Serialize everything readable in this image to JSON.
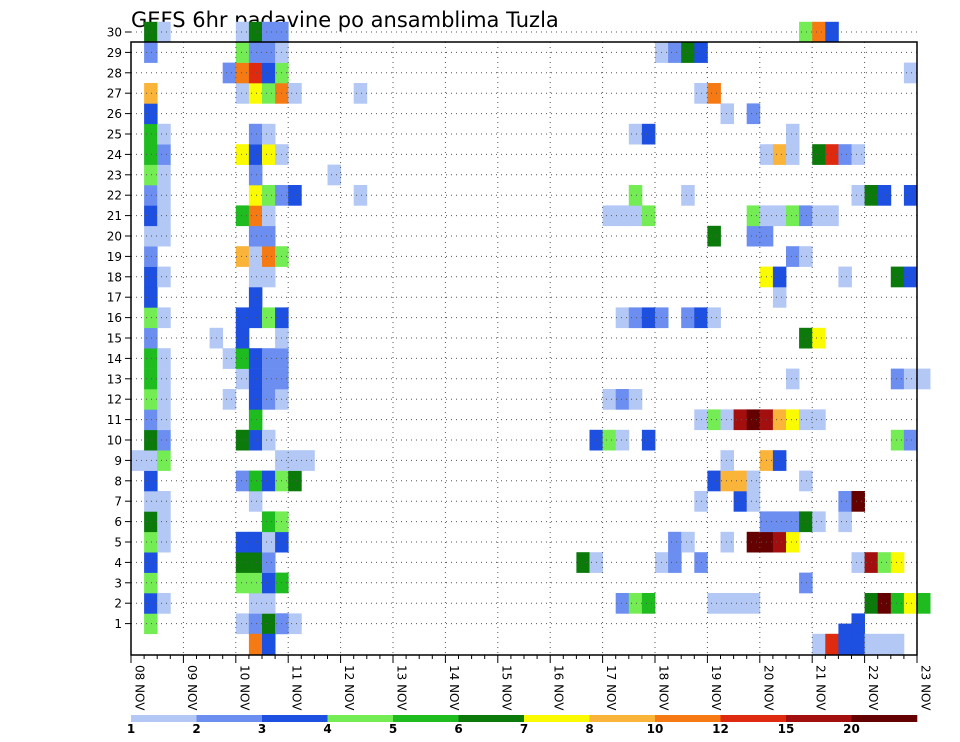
{
  "chart_data": {
    "type": "heatmap",
    "title": "GEFS 6hr padavine po ansamblima Tuzla",
    "y_members": [
      1,
      2,
      3,
      4,
      5,
      6,
      7,
      8,
      9,
      10,
      11,
      12,
      13,
      14,
      15,
      16,
      17,
      18,
      19,
      20,
      21,
      22,
      23,
      24,
      25,
      26,
      27,
      28,
      29,
      30
    ],
    "x_ticks": [
      "08 NOV",
      "09 NOV",
      "10 NOV",
      "11 NOV",
      "12 NOV",
      "13 NOV",
      "14 NOV",
      "15 NOV",
      "16 NOV",
      "17 NOV",
      "18 NOV",
      "19 NOV",
      "20 NOV",
      "21 NOV",
      "22 NOV",
      "23 NOV"
    ],
    "x_range_days": [
      8,
      23
    ],
    "grid": "dotted",
    "colorbar": {
      "labels": [
        "1",
        "2",
        "3",
        "4",
        "5",
        "6",
        "7",
        "8",
        "10",
        "12",
        "15",
        "20"
      ],
      "colors": [
        "#b4c8f5",
        "#6b8ef0",
        "#1d4fe0",
        "#74ec54",
        "#1fbc1f",
        "#0b7a0b",
        "#fafa00",
        "#fbb43a",
        "#f57a14",
        "#de2a0f",
        "#a30f0f",
        "#640000"
      ]
    },
    "cells": [
      [
        8.25,
        1,
        "#74ec54"
      ],
      [
        10.0,
        1,
        "#b4c8f5"
      ],
      [
        10.25,
        1,
        "#6b8ef0"
      ],
      [
        10.25,
        1,
        "#6b8ef0"
      ],
      [
        10.5,
        1,
        "#0b7a0b"
      ],
      [
        10.75,
        1,
        "#1d4fe0"
      ],
      [
        11.0,
        1,
        "#b4c8f5"
      ],
      [
        10.75,
        1,
        "#6b8ef0"
      ],
      [
        21.75,
        1,
        "#1d4fe0"
      ],
      [
        8.25,
        2,
        "#1d4fe0"
      ],
      [
        8.5,
        2,
        "#b4c8f5"
      ],
      [
        10.25,
        2,
        "#b4c8f5"
      ],
      [
        10.5,
        2,
        "#b4c8f5"
      ],
      [
        17.25,
        2,
        "#6b8ef0"
      ],
      [
        17.5,
        2,
        "#74ec54"
      ],
      [
        17.75,
        2,
        "#1fbc1f"
      ],
      [
        19.0,
        2,
        "#b4c8f5"
      ],
      [
        19.25,
        2,
        "#b4c8f5"
      ],
      [
        19.5,
        2,
        "#b4c8f5"
      ],
      [
        19.75,
        2,
        "#b4c8f5"
      ],
      [
        22.0,
        2,
        "#0b7a0b"
      ],
      [
        22.25,
        2,
        "#640000"
      ],
      [
        22.5,
        2,
        "#1fbc1f"
      ],
      [
        22.75,
        2,
        "#fafa00"
      ],
      [
        23.0,
        2,
        "#1fbc1f"
      ],
      [
        8.25,
        3,
        "#74ec54"
      ],
      [
        10.0,
        3,
        "#74ec54"
      ],
      [
        10.25,
        3,
        "#74ec54"
      ],
      [
        10.5,
        3,
        "#1d4fe0"
      ],
      [
        10.75,
        3,
        "#1fbc1f"
      ],
      [
        20.75,
        3,
        "#6b8ef0"
      ],
      [
        8.25,
        4,
        "#1d4fe0"
      ],
      [
        10.0,
        4,
        "#0b7a0b"
      ],
      [
        10.25,
        4,
        "#0b7a0b"
      ],
      [
        10.5,
        4,
        "#6b8ef0"
      ],
      [
        16.5,
        4,
        "#0b7a0b"
      ],
      [
        16.75,
        4,
        "#b4c8f5"
      ],
      [
        18.0,
        4,
        "#b4c8f5"
      ],
      [
        18.25,
        4,
        "#6b8ef0"
      ],
      [
        18.75,
        4,
        "#6b8ef0"
      ],
      [
        21.75,
        4,
        "#b4c8f5"
      ],
      [
        22.0,
        4,
        "#a30f0f"
      ],
      [
        22.25,
        4,
        "#74ec54"
      ],
      [
        22.5,
        4,
        "#fafa00"
      ],
      [
        8.25,
        5,
        "#74ec54"
      ],
      [
        8.5,
        5,
        "#b4c8f5"
      ],
      [
        10.0,
        5,
        "#1d4fe0"
      ],
      [
        10.25,
        5,
        "#1d4fe0"
      ],
      [
        10.5,
        5,
        "#b4c8f5"
      ],
      [
        10.75,
        5,
        "#1d4fe0"
      ],
      [
        18.25,
        5,
        "#6b8ef0"
      ],
      [
        18.5,
        5,
        "#b4c8f5"
      ],
      [
        19.25,
        5,
        "#b4c8f5"
      ],
      [
        19.75,
        5,
        "#640000"
      ],
      [
        20.0,
        5,
        "#640000"
      ],
      [
        20.25,
        5,
        "#a30f0f"
      ],
      [
        20.5,
        5,
        "#fafa00"
      ],
      [
        8.25,
        6,
        "#0b7a0b"
      ],
      [
        8.5,
        6,
        "#b4c8f5"
      ],
      [
        10.5,
        6,
        "#1fbc1f"
      ],
      [
        10.75,
        6,
        "#74ec54"
      ],
      [
        20.0,
        6,
        "#6b8ef0"
      ],
      [
        20.25,
        6,
        "#6b8ef0"
      ],
      [
        20.5,
        6,
        "#6b8ef0"
      ],
      [
        20.75,
        6,
        "#0b7a0b"
      ],
      [
        21.0,
        6,
        "#b4c8f5"
      ],
      [
        21.5,
        6,
        "#b4c8f5"
      ],
      [
        8.25,
        7,
        "#b4c8f5"
      ],
      [
        8.5,
        7,
        "#b4c8f5"
      ],
      [
        10.25,
        7,
        "#b4c8f5"
      ],
      [
        18.75,
        7,
        "#b4c8f5"
      ],
      [
        19.5,
        7,
        "#1d4fe0"
      ],
      [
        19.75,
        7,
        "#b4c8f5"
      ],
      [
        21.5,
        7,
        "#6b8ef0"
      ],
      [
        21.75,
        7,
        "#640000"
      ],
      [
        8.25,
        8,
        "#1d4fe0"
      ],
      [
        10.0,
        8,
        "#6b8ef0"
      ],
      [
        10.25,
        8,
        "#1fbc1f"
      ],
      [
        10.5,
        8,
        "#1d4fe0"
      ],
      [
        10.75,
        8,
        "#74ec54"
      ],
      [
        11.0,
        8,
        "#0b7a0b"
      ],
      [
        19.0,
        8,
        "#1d4fe0"
      ],
      [
        19.25,
        8,
        "#fbb43a"
      ],
      [
        19.5,
        8,
        "#fbb43a"
      ],
      [
        19.75,
        8,
        "#b4c8f5"
      ],
      [
        20.75,
        8,
        "#b4c8f5"
      ],
      [
        8.0,
        9,
        "#b4c8f5"
      ],
      [
        8.25,
        9,
        "#b4c8f5"
      ],
      [
        8.5,
        9,
        "#74ec54"
      ],
      [
        10.75,
        9,
        "#b4c8f5"
      ],
      [
        11.0,
        9,
        "#b4c8f5"
      ],
      [
        11.25,
        9,
        "#b4c8f5"
      ],
      [
        19.25,
        9,
        "#b4c8f5"
      ],
      [
        20.0,
        9,
        "#fbb43a"
      ],
      [
        20.25,
        9,
        "#1d4fe0"
      ],
      [
        8.25,
        10,
        "#0b7a0b"
      ],
      [
        8.5,
        10,
        "#6b8ef0"
      ],
      [
        10.0,
        10,
        "#0b7a0b"
      ],
      [
        10.25,
        10,
        "#1d4fe0"
      ],
      [
        10.5,
        10,
        "#b4c8f5"
      ],
      [
        16.75,
        10,
        "#1d4fe0"
      ],
      [
        17.0,
        10,
        "#74ec54"
      ],
      [
        17.25,
        10,
        "#b4c8f5"
      ],
      [
        17.75,
        10,
        "#1d4fe0"
      ],
      [
        22.5,
        10,
        "#74ec54"
      ],
      [
        22.75,
        10,
        "#6b8ef0"
      ],
      [
        8.25,
        11,
        "#6b8ef0"
      ],
      [
        8.5,
        11,
        "#b4c8f5"
      ],
      [
        10.25,
        11,
        "#1fbc1f"
      ],
      [
        18.75,
        11,
        "#b4c8f5"
      ],
      [
        19.0,
        11,
        "#74ec54"
      ],
      [
        19.25,
        11,
        "#b4c8f5"
      ],
      [
        19.5,
        11,
        "#a30f0f"
      ],
      [
        19.75,
        11,
        "#640000"
      ],
      [
        20.0,
        11,
        "#a30f0f"
      ],
      [
        20.25,
        11,
        "#fbb43a"
      ],
      [
        20.5,
        11,
        "#fafa00"
      ],
      [
        20.75,
        11,
        "#b4c8f5"
      ],
      [
        21.0,
        11,
        "#b4c8f5"
      ],
      [
        8.25,
        12,
        "#74ec54"
      ],
      [
        8.5,
        12,
        "#b4c8f5"
      ],
      [
        9.75,
        12,
        "#b4c8f5"
      ],
      [
        10.25,
        12,
        "#1d4fe0"
      ],
      [
        10.5,
        12,
        "#6b8ef0"
      ],
      [
        10.75,
        12,
        "#b4c8f5"
      ],
      [
        17.0,
        12,
        "#b4c8f5"
      ],
      [
        17.25,
        12,
        "#6b8ef0"
      ],
      [
        17.5,
        12,
        "#b4c8f5"
      ],
      [
        8.25,
        13,
        "#1fbc1f"
      ],
      [
        8.5,
        13,
        "#b4c8f5"
      ],
      [
        10.0,
        13,
        "#b4c8f5"
      ],
      [
        10.25,
        13,
        "#1d4fe0"
      ],
      [
        10.5,
        13,
        "#6b8ef0"
      ],
      [
        10.75,
        13,
        "#6b8ef0"
      ],
      [
        20.5,
        13,
        "#b4c8f5"
      ],
      [
        22.5,
        13,
        "#6b8ef0"
      ],
      [
        22.75,
        13,
        "#b4c8f5"
      ],
      [
        23.0,
        13,
        "#b4c8f5"
      ],
      [
        8.25,
        14,
        "#1fbc1f"
      ],
      [
        8.5,
        14,
        "#b4c8f5"
      ],
      [
        9.75,
        14,
        "#b4c8f5"
      ],
      [
        10.0,
        14,
        "#1fbc1f"
      ],
      [
        10.25,
        14,
        "#1d4fe0"
      ],
      [
        10.5,
        14,
        "#6b8ef0"
      ],
      [
        10.75,
        14,
        "#6b8ef0"
      ],
      [
        8.25,
        15,
        "#6b8ef0"
      ],
      [
        9.5,
        15,
        "#b4c8f5"
      ],
      [
        10.0,
        15,
        "#1d4fe0"
      ],
      [
        10.75,
        15,
        "#b4c8f5"
      ],
      [
        20.75,
        15,
        "#0b7a0b"
      ],
      [
        21.0,
        15,
        "#fafa00"
      ],
      [
        8.25,
        16,
        "#74ec54"
      ],
      [
        8.5,
        16,
        "#b4c8f5"
      ],
      [
        10.0,
        16,
        "#1d4fe0"
      ],
      [
        10.25,
        16,
        "#1d4fe0"
      ],
      [
        10.5,
        16,
        "#74ec54"
      ],
      [
        10.75,
        16,
        "#1d4fe0"
      ],
      [
        17.25,
        16,
        "#b4c8f5"
      ],
      [
        17.5,
        16,
        "#6b8ef0"
      ],
      [
        17.75,
        16,
        "#1d4fe0"
      ],
      [
        18.0,
        16,
        "#6b8ef0"
      ],
      [
        18.5,
        16,
        "#6b8ef0"
      ],
      [
        18.75,
        16,
        "#1d4fe0"
      ],
      [
        19.0,
        16,
        "#b4c8f5"
      ],
      [
        8.25,
        17,
        "#1d4fe0"
      ],
      [
        10.25,
        17,
        "#1d4fe0"
      ],
      [
        20.25,
        17,
        "#b4c8f5"
      ],
      [
        8.25,
        18,
        "#1d4fe0"
      ],
      [
        8.5,
        18,
        "#b4c8f5"
      ],
      [
        10.25,
        18,
        "#b4c8f5"
      ],
      [
        10.5,
        18,
        "#b4c8f5"
      ],
      [
        20.0,
        18,
        "#fafa00"
      ],
      [
        20.25,
        18,
        "#1d4fe0"
      ],
      [
        21.5,
        18,
        "#b4c8f5"
      ],
      [
        22.5,
        18,
        "#0b7a0b"
      ],
      [
        22.75,
        18,
        "#1d4fe0"
      ],
      [
        8.25,
        19,
        "#6b8ef0"
      ],
      [
        10.0,
        19,
        "#fbb43a"
      ],
      [
        10.25,
        19,
        "#b4c8f5"
      ],
      [
        10.5,
        19,
        "#f57a14"
      ],
      [
        10.75,
        19,
        "#74ec54"
      ],
      [
        20.5,
        19,
        "#6b8ef0"
      ],
      [
        20.75,
        19,
        "#b4c8f5"
      ],
      [
        8.25,
        20,
        "#b4c8f5"
      ],
      [
        8.5,
        20,
        "#b4c8f5"
      ],
      [
        10.25,
        20,
        "#6b8ef0"
      ],
      [
        10.5,
        20,
        "#6b8ef0"
      ],
      [
        19.0,
        20,
        "#0b7a0b"
      ],
      [
        19.75,
        20,
        "#6b8ef0"
      ],
      [
        20.0,
        20,
        "#6b8ef0"
      ],
      [
        8.25,
        21,
        "#1d4fe0"
      ],
      [
        8.5,
        21,
        "#b4c8f5"
      ],
      [
        10.0,
        21,
        "#1fbc1f"
      ],
      [
        10.25,
        21,
        "#f57a14"
      ],
      [
        10.5,
        21,
        "#b4c8f5"
      ],
      [
        17.0,
        21,
        "#b4c8f5"
      ],
      [
        17.25,
        21,
        "#b4c8f5"
      ],
      [
        17.5,
        21,
        "#b4c8f5"
      ],
      [
        17.75,
        21,
        "#74ec54"
      ],
      [
        19.75,
        21,
        "#74ec54"
      ],
      [
        20.0,
        21,
        "#b4c8f5"
      ],
      [
        20.25,
        21,
        "#b4c8f5"
      ],
      [
        20.5,
        21,
        "#74ec54"
      ],
      [
        20.75,
        21,
        "#6b8ef0"
      ],
      [
        21.0,
        21,
        "#b4c8f5"
      ],
      [
        21.25,
        21,
        "#b4c8f5"
      ],
      [
        8.25,
        22,
        "#6b8ef0"
      ],
      [
        8.5,
        22,
        "#b4c8f5"
      ],
      [
        10.25,
        22,
        "#fafa00"
      ],
      [
        10.5,
        22,
        "#74ec54"
      ],
      [
        10.75,
        22,
        "#6b8ef0"
      ],
      [
        11.0,
        22,
        "#1d4fe0"
      ],
      [
        12.25,
        22,
        "#b4c8f5"
      ],
      [
        17.5,
        22,
        "#74ec54"
      ],
      [
        18.5,
        22,
        "#b4c8f5"
      ],
      [
        21.75,
        22,
        "#b4c8f5"
      ],
      [
        22.0,
        22,
        "#0b7a0b"
      ],
      [
        22.25,
        22,
        "#1d4fe0"
      ],
      [
        22.75,
        22,
        "#1d4fe0"
      ],
      [
        8.25,
        23,
        "#74ec54"
      ],
      [
        8.5,
        23,
        "#b4c8f5"
      ],
      [
        10.25,
        23,
        "#6b8ef0"
      ],
      [
        11.75,
        23,
        "#b4c8f5"
      ],
      [
        8.25,
        24,
        "#1fbc1f"
      ],
      [
        8.5,
        24,
        "#6b8ef0"
      ],
      [
        10.0,
        24,
        "#fafa00"
      ],
      [
        10.25,
        24,
        "#1d4fe0"
      ],
      [
        10.5,
        24,
        "#fafa00"
      ],
      [
        10.75,
        24,
        "#b4c8f5"
      ],
      [
        20.0,
        24,
        "#b4c8f5"
      ],
      [
        20.25,
        24,
        "#fbb43a"
      ],
      [
        20.5,
        24,
        "#b4c8f5"
      ],
      [
        21.0,
        24,
        "#0b7a0b"
      ],
      [
        21.25,
        24,
        "#de2a0f"
      ],
      [
        21.5,
        24,
        "#6b8ef0"
      ],
      [
        21.75,
        24,
        "#b4c8f5"
      ],
      [
        8.25,
        25,
        "#1fbc1f"
      ],
      [
        8.5,
        25,
        "#b4c8f5"
      ],
      [
        10.25,
        25,
        "#6b8ef0"
      ],
      [
        10.5,
        25,
        "#b4c8f5"
      ],
      [
        17.5,
        25,
        "#b4c8f5"
      ],
      [
        17.75,
        25,
        "#1d4fe0"
      ],
      [
        20.5,
        25,
        "#b4c8f5"
      ],
      [
        8.25,
        26,
        "#1d4fe0"
      ],
      [
        19.25,
        26,
        "#b4c8f5"
      ],
      [
        19.75,
        26,
        "#6b8ef0"
      ],
      [
        8.25,
        27,
        "#fbb43a"
      ],
      [
        10.0,
        27,
        "#b4c8f5"
      ],
      [
        10.25,
        27,
        "#fafa00"
      ],
      [
        10.5,
        27,
        "#74ec54"
      ],
      [
        10.75,
        27,
        "#f57a14"
      ],
      [
        11.0,
        27,
        "#b4c8f5"
      ],
      [
        12.25,
        27,
        "#b4c8f5"
      ],
      [
        18.75,
        27,
        "#b4c8f5"
      ],
      [
        19.0,
        27,
        "#f57a14"
      ],
      [
        9.75,
        28,
        "#6b8ef0"
      ],
      [
        10.0,
        28,
        "#f57a14"
      ],
      [
        10.25,
        28,
        "#de2a0f"
      ],
      [
        10.5,
        28,
        "#1d4fe0"
      ],
      [
        10.75,
        28,
        "#74ec54"
      ],
      [
        22.75,
        28,
        "#b4c8f5"
      ],
      [
        8.25,
        29,
        "#6b8ef0"
      ],
      [
        10.0,
        29,
        "#74ec54"
      ],
      [
        10.25,
        29,
        "#6b8ef0"
      ],
      [
        10.5,
        29,
        "#6b8ef0"
      ],
      [
        10.75,
        29,
        "#b4c8f5"
      ],
      [
        18.0,
        29,
        "#b4c8f5"
      ],
      [
        18.25,
        29,
        "#6b8ef0"
      ],
      [
        18.5,
        29,
        "#0b7a0b"
      ],
      [
        18.75,
        29,
        "#1d4fe0"
      ],
      [
        8.25,
        30,
        "#0b7a0b"
      ],
      [
        8.5,
        30,
        "#b4c8f5"
      ],
      [
        10.0,
        30,
        "#b4c8f5"
      ],
      [
        10.25,
        30,
        "#0b7a0b"
      ],
      [
        10.5,
        30,
        "#6b8ef0"
      ],
      [
        10.75,
        30,
        "#6b8ef0"
      ],
      [
        20.75,
        30,
        "#74ec54"
      ],
      [
        21.0,
        30,
        "#f57a14"
      ],
      [
        21.25,
        30,
        "#1d4fe0"
      ],
      [
        10.25,
        0,
        "#f57a14"
      ],
      [
        10.5,
        0,
        "#1d4fe0"
      ],
      [
        21.0,
        0,
        "#b4c8f5"
      ],
      [
        21.25,
        0,
        "#de2a0f"
      ],
      [
        21.5,
        0,
        "#1d4fe0"
      ],
      [
        21.75,
        0,
        "#1d4fe0"
      ],
      [
        22.0,
        0,
        "#b4c8f5"
      ],
      [
        22.25,
        0,
        "#b4c8f5"
      ],
      [
        22.5,
        0,
        "#b4c8f5"
      ],
      [
        21.5,
        0.5,
        "#1d4fe0"
      ]
    ]
  }
}
